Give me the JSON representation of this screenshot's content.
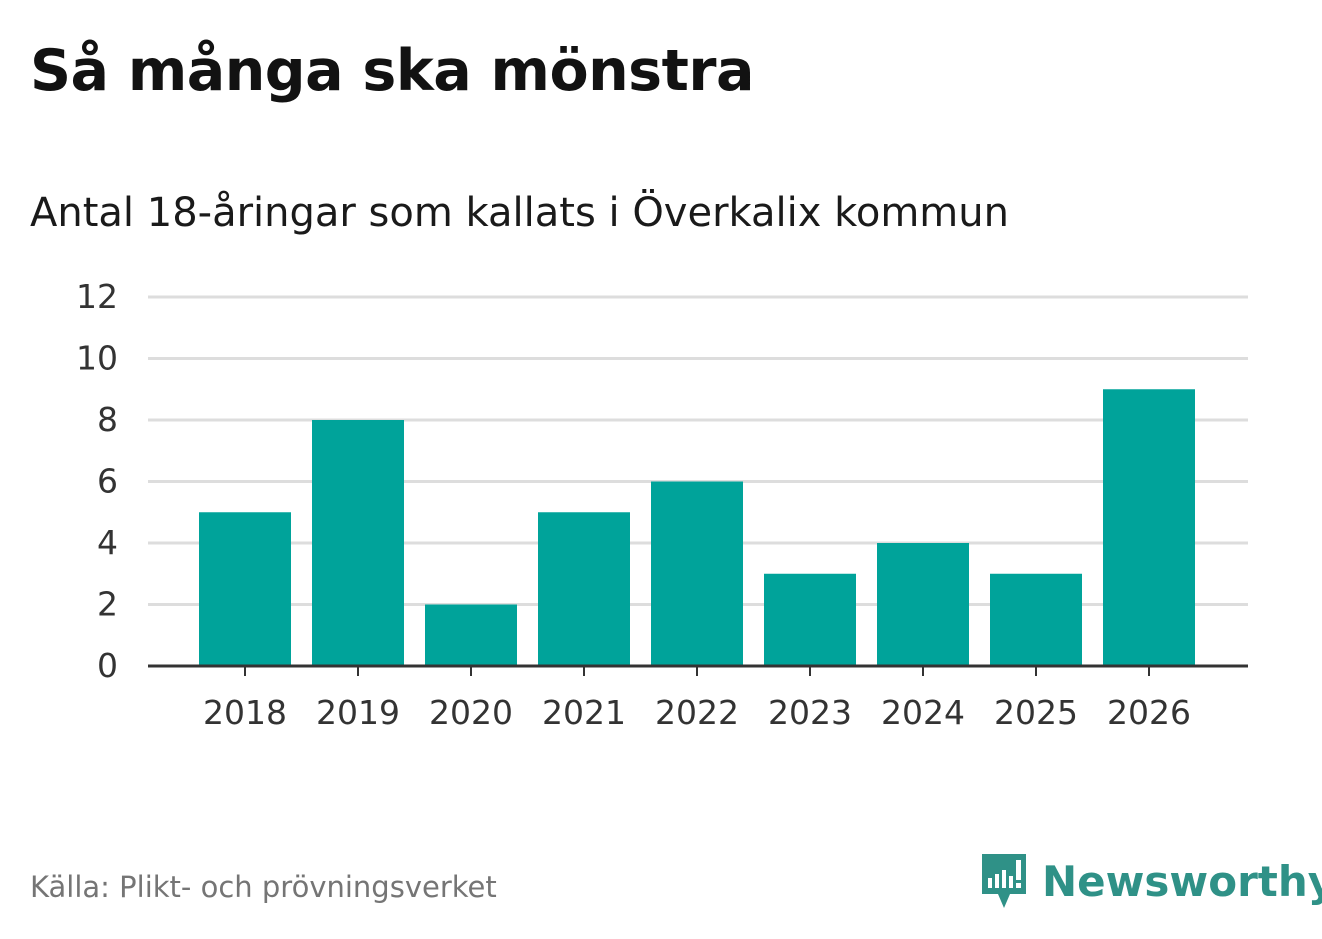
{
  "title": "Så många ska mönstra",
  "subtitle": "Antal 18-åringar som kallats i Överkalix kommun",
  "source": "Källa: Plikt- och prövningsverket",
  "brand": {
    "name": "Newsworthy",
    "icon": "newsworthy-logo-icon",
    "color": "#2f9187"
  },
  "colors": {
    "bar": "#00a39a",
    "grid": "#dddddd",
    "axis": "#333333",
    "text": "#333333"
  },
  "chart_data": {
    "type": "bar",
    "categories": [
      "2018",
      "2019",
      "2020",
      "2021",
      "2022",
      "2023",
      "2024",
      "2025",
      "2026"
    ],
    "values": [
      5,
      8,
      2,
      5,
      6,
      3,
      4,
      3,
      9
    ],
    "yticks": [
      "0",
      "2",
      "4",
      "6",
      "8",
      "10",
      "12"
    ],
    "ylim": [
      0,
      12
    ],
    "xlabel": "",
    "ylabel": "",
    "grid": true
  }
}
